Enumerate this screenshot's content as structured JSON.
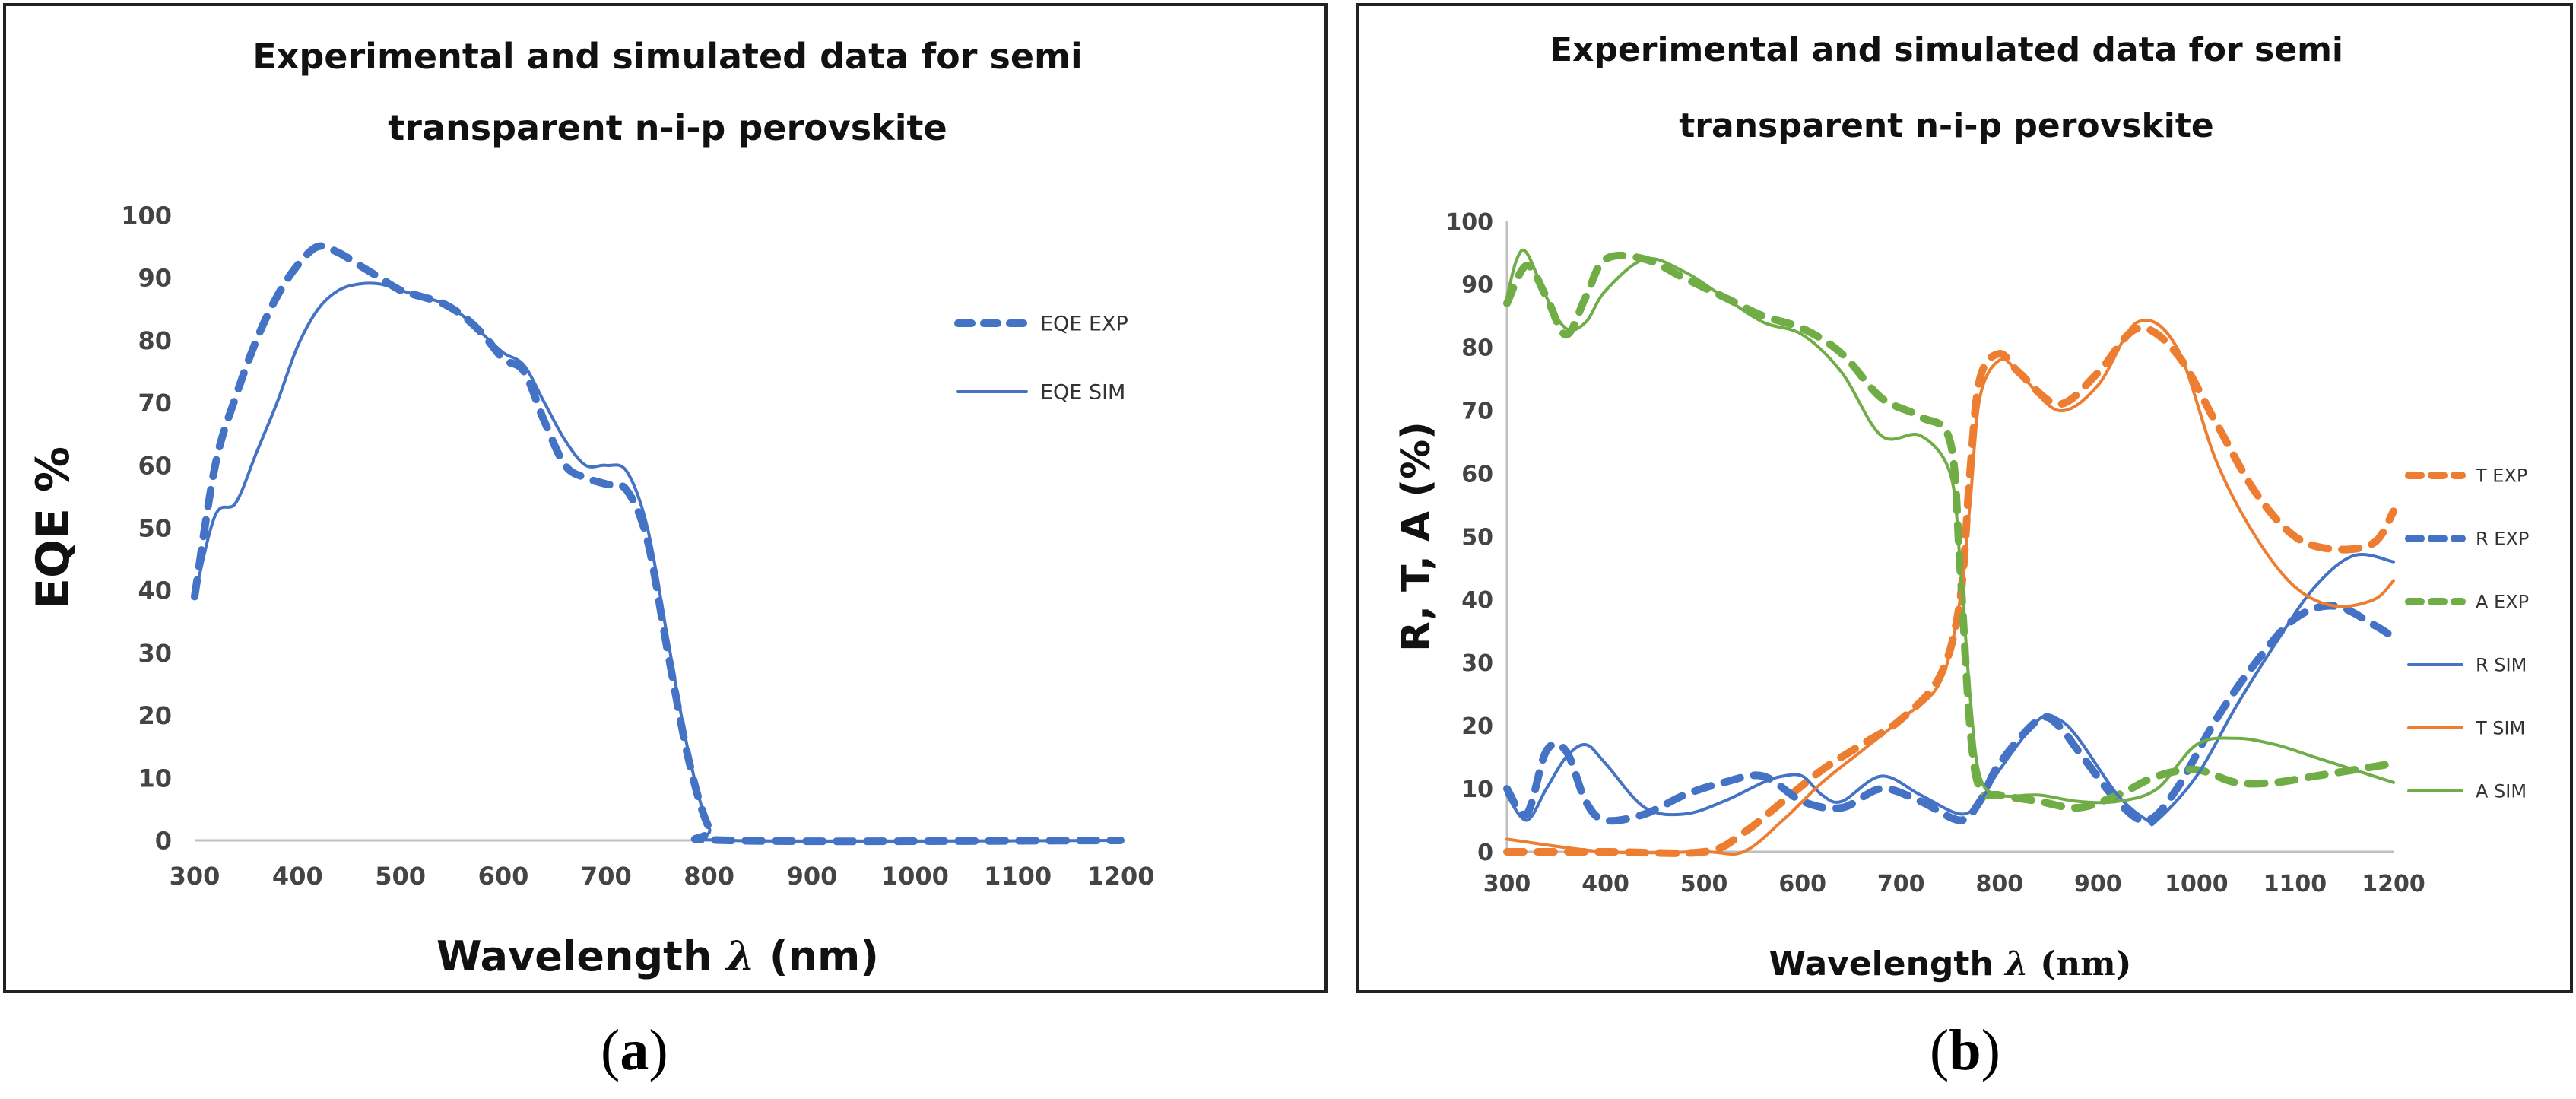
{
  "captions": {
    "a": "a",
    "b": "b"
  },
  "chart_data": [
    {
      "type": "line",
      "title": "Experimental and simulated data for semi transparent n-i-p perovskite",
      "title_lines": [
        "Experimental and simulated data for semi",
        "transparent n-i-p perovskite"
      ],
      "xlabel": "Wavelength",
      "xlabel_symbol": "λ",
      "xlabel_unit": "(nm)",
      "ylabel": "EQE %",
      "xlim": [
        300,
        1200
      ],
      "ylim": [
        0,
        100
      ],
      "xticks": [
        300,
        400,
        500,
        600,
        700,
        800,
        900,
        1000,
        1100,
        1200
      ],
      "yticks": [
        0,
        10,
        20,
        30,
        40,
        50,
        60,
        70,
        80,
        90,
        100
      ],
      "grid": false,
      "legend_position": "right",
      "series": [
        {
          "name": "EQE EXP",
          "style": "dashed",
          "color": "#4472C4",
          "x": [
            300,
            320,
            340,
            360,
            380,
            400,
            420,
            440,
            460,
            480,
            500,
            520,
            540,
            560,
            580,
            600,
            620,
            640,
            660,
            680,
            700,
            720,
            740,
            760,
            780,
            800,
            820,
            1200
          ],
          "y": [
            39,
            60,
            71,
            80,
            87,
            92,
            95,
            94,
            92,
            90,
            88,
            87,
            86,
            84,
            81,
            77,
            75,
            67,
            60,
            58,
            57,
            56,
            48,
            30,
            13,
            2,
            0,
            0
          ]
        },
        {
          "name": "EQE SIM",
          "style": "solid",
          "color": "#4472C4",
          "x": [
            300,
            320,
            340,
            360,
            380,
            400,
            420,
            440,
            460,
            480,
            500,
            520,
            540,
            560,
            580,
            600,
            620,
            640,
            660,
            680,
            700,
            720,
            740,
            760,
            780,
            800,
            820,
            1200
          ],
          "y": [
            39,
            52,
            54,
            62,
            70,
            79,
            85,
            88,
            89,
            89,
            88,
            87,
            86,
            84,
            81,
            78,
            76,
            70,
            64,
            60,
            60,
            59,
            50,
            32,
            14,
            2,
            0,
            0
          ]
        }
      ]
    },
    {
      "type": "line",
      "title": "Experimental and simulated data for semi transparent n-i-p perovskite",
      "title_lines": [
        "Experimental and simulated data for semi",
        "transparent n-i-p perovskite"
      ],
      "xlabel": "Wavelength",
      "xlabel_symbol": "λ",
      "xlabel_unit": "(nm)",
      "ylabel": "R, T, A (%)",
      "xlim": [
        300,
        1200
      ],
      "ylim": [
        0,
        100
      ],
      "xticks": [
        300,
        400,
        500,
        600,
        700,
        800,
        900,
        1000,
        1100,
        1200
      ],
      "yticks": [
        0,
        10,
        20,
        30,
        40,
        50,
        60,
        70,
        80,
        90,
        100
      ],
      "grid": false,
      "legend_position": "right",
      "series": [
        {
          "name": "T EXP",
          "style": "dashed",
          "color": "#ED7D31",
          "x": [
            300,
            400,
            500,
            540,
            580,
            620,
            660,
            700,
            740,
            760,
            770,
            780,
            800,
            820,
            860,
            900,
            940,
            980,
            1020,
            1060,
            1100,
            1140,
            1180,
            1200
          ],
          "y": [
            0,
            0,
            0,
            3,
            8,
            13,
            17,
            21,
            28,
            40,
            60,
            75,
            79,
            76,
            71,
            76,
            83,
            79,
            68,
            57,
            50,
            48,
            49,
            54
          ]
        },
        {
          "name": "R EXP",
          "style": "dashed",
          "color": "#4472C4",
          "x": [
            300,
            320,
            340,
            360,
            380,
            400,
            440,
            480,
            520,
            560,
            600,
            640,
            680,
            720,
            760,
            780,
            800,
            840,
            860,
            880,
            920,
            950,
            980,
            1020,
            1060,
            1100,
            1140,
            1180,
            1200
          ],
          "y": [
            10,
            6,
            16,
            16,
            8,
            5,
            6,
            9,
            11,
            12,
            8,
            7,
            10,
            8,
            5,
            8,
            14,
            21,
            20,
            16,
            8,
            5,
            10,
            21,
            30,
            37,
            39,
            36,
            34
          ]
        },
        {
          "name": "A EXP",
          "style": "dashed",
          "color": "#70AD47",
          "x": [
            300,
            320,
            340,
            360,
            380,
            400,
            440,
            480,
            520,
            560,
            600,
            640,
            680,
            720,
            750,
            760,
            770,
            780,
            800,
            840,
            880,
            920,
            960,
            1000,
            1040,
            1080,
            1120,
            1160,
            1200
          ],
          "y": [
            87,
            93,
            88,
            82,
            88,
            94,
            94,
            91,
            88,
            85,
            83,
            79,
            72,
            69,
            65,
            45,
            20,
            10,
            9,
            8,
            7,
            9,
            12,
            13,
            11,
            11,
            12,
            13,
            14
          ]
        },
        {
          "name": "R SIM",
          "style": "solid",
          "color": "#4472C4",
          "x": [
            300,
            320,
            340,
            360,
            380,
            400,
            440,
            480,
            520,
            560,
            580,
            600,
            620,
            640,
            680,
            720,
            760,
            780,
            800,
            840,
            860,
            880,
            920,
            950,
            960,
            1000,
            1040,
            1080,
            1120,
            1160,
            1200
          ],
          "y": [
            9,
            5,
            10,
            15,
            17,
            14,
            7,
            6,
            8,
            11,
            12,
            12,
            9,
            8,
            12,
            9,
            6,
            8,
            13,
            21,
            21,
            18,
            9,
            5,
            5,
            12,
            23,
            33,
            42,
            47,
            46
          ]
        },
        {
          "name": "T SIM",
          "style": "solid",
          "color": "#ED7D31",
          "x": [
            300,
            400,
            500,
            540,
            580,
            620,
            660,
            700,
            740,
            760,
            770,
            780,
            800,
            820,
            860,
            900,
            940,
            980,
            1020,
            1060,
            1100,
            1140,
            1180,
            1200
          ],
          "y": [
            2,
            0,
            0,
            0,
            5,
            11,
            16,
            21,
            27,
            40,
            55,
            72,
            78,
            76,
            70,
            74,
            84,
            80,
            62,
            50,
            42,
            39,
            40,
            43
          ]
        },
        {
          "name": "A SIM",
          "style": "solid",
          "color": "#70AD47",
          "x": [
            300,
            310,
            320,
            340,
            360,
            380,
            400,
            440,
            480,
            520,
            560,
            600,
            640,
            680,
            720,
            750,
            760,
            770,
            780,
            800,
            840,
            880,
            920,
            960,
            1000,
            1040,
            1080,
            1120,
            1160,
            1200
          ],
          "y": [
            88,
            94,
            95,
            88,
            83,
            84,
            89,
            94,
            92,
            88,
            84,
            82,
            76,
            66,
            66,
            60,
            46,
            25,
            12,
            9,
            9,
            8,
            8,
            10,
            17,
            18,
            17,
            15,
            13,
            11
          ]
        }
      ]
    }
  ]
}
